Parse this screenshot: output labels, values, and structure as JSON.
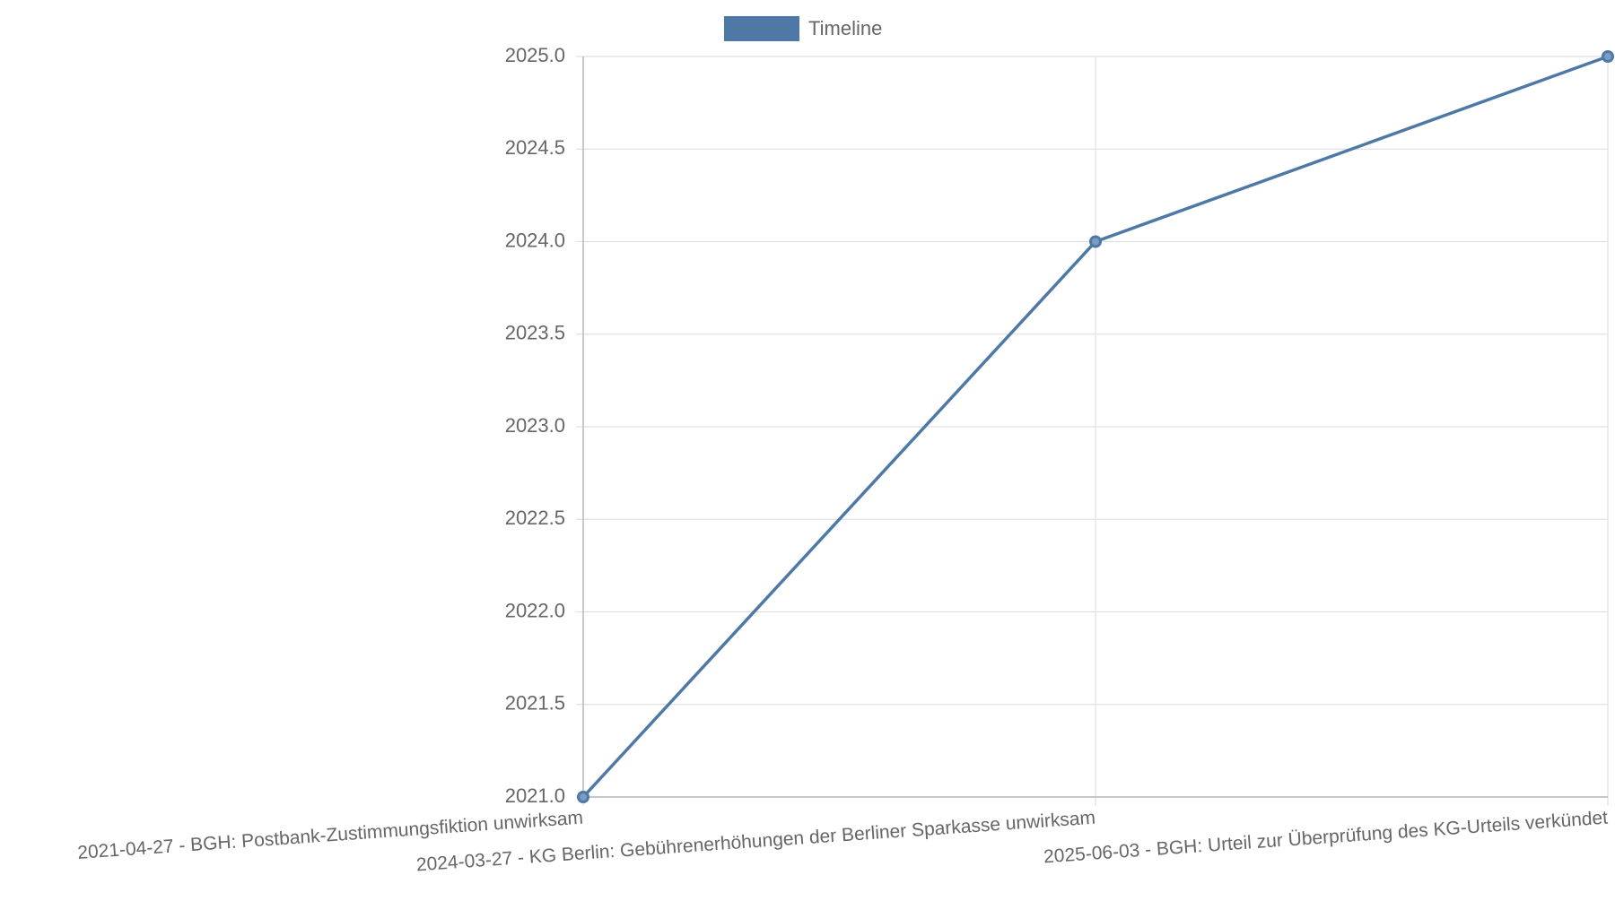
{
  "chart_data": {
    "type": "line",
    "categories": [
      "2021-04-27 - BGH: Postbank-Zustimmungsfiktion unwirksam",
      "2024-03-27 - KG Berlin: Gebührenerhöhungen der Berliner Sparkasse unwirksam",
      "2025-06-03 - BGH: Urteil zur Überprüfung des KG-Urteils verkündet"
    ],
    "series": [
      {
        "name": "Timeline",
        "color": "#4e79a7",
        "values": [
          2021,
          2024,
          2025
        ]
      }
    ],
    "ylim": [
      2021,
      2025
    ],
    "yticks": [
      {
        "value": 2021,
        "label": "2021.0"
      },
      {
        "value": 2021.5,
        "label": "2021.5"
      },
      {
        "value": 2022,
        "label": "2022.0"
      },
      {
        "value": 2022.5,
        "label": "2022.5"
      },
      {
        "value": 2023,
        "label": "2023.0"
      },
      {
        "value": 2023.5,
        "label": "2023.5"
      },
      {
        "value": 2024,
        "label": "2024.0"
      },
      {
        "value": 2024.5,
        "label": "2024.5"
      },
      {
        "value": 2025,
        "label": "2025.0"
      }
    ],
    "grid": true,
    "legend": "top"
  }
}
